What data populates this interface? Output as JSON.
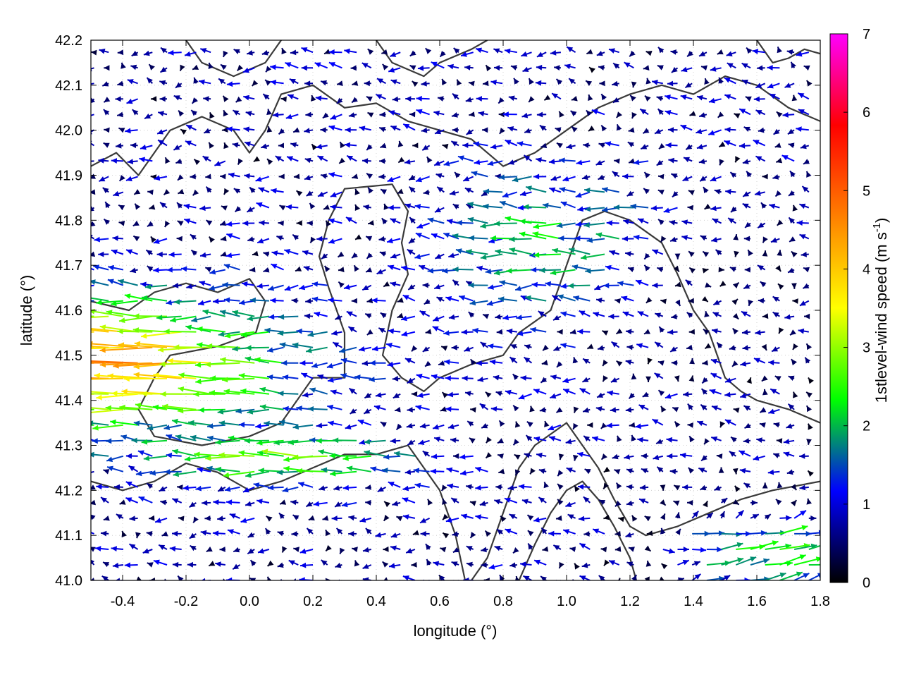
{
  "chart_data": {
    "type": "vector-field",
    "title": "",
    "xlabel": "longitude (°)",
    "ylabel": "latitude (°)",
    "xlim": [
      -0.5,
      1.8
    ],
    "ylim": [
      41.0,
      42.2
    ],
    "x_ticks": [
      "-0.4",
      "-0.2",
      "0.0",
      "0.2",
      "0.4",
      "0.6",
      "0.8",
      "1.0",
      "1.2",
      "1.4",
      "1.6",
      "1.8"
    ],
    "x_tick_values": [
      -0.4,
      -0.2,
      0.0,
      0.2,
      0.4,
      0.6,
      0.8,
      1.0,
      1.2,
      1.4,
      1.6,
      1.8
    ],
    "y_ticks": [
      "41.0",
      "41.1",
      "41.2",
      "41.3",
      "41.4",
      "41.5",
      "41.6",
      "41.7",
      "41.8",
      "41.9",
      "42.0",
      "42.1",
      "42.2"
    ],
    "y_tick_values": [
      41.0,
      41.1,
      41.2,
      41.3,
      41.4,
      41.5,
      41.6,
      41.7,
      41.8,
      41.9,
      42.0,
      42.1,
      42.2
    ],
    "grid": true,
    "colorbar": {
      "label": "1stlevel-wind speed (m s-1)",
      "label_base": "1stlevel-wind speed (m s",
      "label_sup": "-1",
      "label_end": ")",
      "range": [
        0,
        7
      ],
      "ticks": [
        "0",
        "1",
        "2",
        "3",
        "4",
        "5",
        "6",
        "7"
      ],
      "tick_values": [
        0,
        1,
        2,
        3,
        4,
        5,
        6,
        7
      ],
      "colors": [
        "#000000",
        "#0000ff",
        "#00ff00",
        "#ffff00",
        "#ff8000",
        "#ff0000",
        "#ff00ff"
      ]
    },
    "vector_summary": "wind vectors colored by speed; strongest westward flow (3–5 m s-1) over x -0.5 to 0.3, lat 41.3–41.6; moderate eastward flow (2–3 m s-1) in the southeast corner",
    "contours": [
      [
        [
          -0.5,
          41.62
        ],
        [
          -0.38,
          41.6
        ],
        [
          -0.3,
          41.64
        ],
        [
          -0.2,
          41.66
        ],
        [
          -0.1,
          41.64
        ],
        [
          0.0,
          41.67
        ],
        [
          0.05,
          41.62
        ],
        [
          0.02,
          41.55
        ],
        [
          -0.1,
          41.52
        ],
        [
          -0.25,
          41.5
        ],
        [
          -0.3,
          41.45
        ],
        [
          -0.35,
          41.38
        ],
        [
          -0.3,
          41.32
        ],
        [
          -0.15,
          41.3
        ],
        [
          0.0,
          41.32
        ],
        [
          0.1,
          41.35
        ],
        [
          0.15,
          41.4
        ]
      ],
      [
        [
          0.15,
          41.4
        ],
        [
          0.2,
          41.45
        ],
        [
          0.3,
          41.45
        ],
        [
          0.3,
          41.55
        ],
        [
          0.25,
          41.65
        ],
        [
          0.22,
          41.72
        ],
        [
          0.25,
          41.8
        ],
        [
          0.3,
          41.87
        ],
        [
          0.45,
          41.88
        ],
        [
          0.5,
          41.82
        ],
        [
          0.48,
          41.75
        ],
        [
          0.5,
          41.68
        ],
        [
          0.45,
          41.6
        ],
        [
          0.42,
          41.5
        ],
        [
          0.48,
          41.45
        ],
        [
          0.55,
          41.42
        ],
        [
          0.6,
          41.45
        ]
      ],
      [
        [
          0.6,
          41.45
        ],
        [
          0.7,
          41.48
        ],
        [
          0.8,
          41.5
        ],
        [
          0.85,
          41.55
        ],
        [
          0.95,
          41.6
        ],
        [
          1.0,
          41.7
        ],
        [
          1.05,
          41.8
        ],
        [
          1.12,
          41.82
        ],
        [
          1.2,
          41.8
        ],
        [
          1.3,
          41.75
        ],
        [
          1.35,
          41.68
        ],
        [
          1.4,
          41.6
        ],
        [
          1.45,
          41.55
        ],
        [
          1.5,
          41.45
        ],
        [
          1.55,
          41.42
        ],
        [
          1.6,
          41.4
        ],
        [
          1.7,
          41.38
        ],
        [
          1.8,
          41.35
        ]
      ],
      [
        [
          -0.5,
          41.22
        ],
        [
          -0.4,
          41.2
        ],
        [
          -0.3,
          41.22
        ],
        [
          -0.2,
          41.26
        ],
        [
          -0.1,
          41.24
        ],
        [
          0.0,
          41.2
        ],
        [
          0.1,
          41.22
        ],
        [
          0.2,
          41.25
        ],
        [
          0.3,
          41.28
        ],
        [
          0.4,
          41.28
        ],
        [
          0.5,
          41.3
        ],
        [
          0.55,
          41.25
        ],
        [
          0.6,
          41.2
        ],
        [
          0.65,
          41.1
        ],
        [
          0.68,
          41.0
        ]
      ],
      [
        [
          0.7,
          41.0
        ],
        [
          0.75,
          41.05
        ],
        [
          0.8,
          41.15
        ],
        [
          0.85,
          41.25
        ],
        [
          0.9,
          41.3
        ],
        [
          1.0,
          41.35
        ],
        [
          1.05,
          41.3
        ],
        [
          1.1,
          41.25
        ],
        [
          1.15,
          41.18
        ],
        [
          1.2,
          41.12
        ],
        [
          1.25,
          41.1
        ],
        [
          1.35,
          41.12
        ],
        [
          1.45,
          41.15
        ],
        [
          1.55,
          41.18
        ],
        [
          1.65,
          41.2
        ],
        [
          1.8,
          41.22
        ]
      ],
      [
        [
          0.85,
          41.0
        ],
        [
          0.9,
          41.08
        ],
        [
          0.95,
          41.15
        ],
        [
          1.0,
          41.2
        ],
        [
          1.05,
          41.22
        ],
        [
          1.1,
          41.18
        ],
        [
          1.15,
          41.12
        ],
        [
          1.2,
          41.05
        ],
        [
          1.22,
          41.0
        ]
      ],
      [
        [
          -0.5,
          41.92
        ],
        [
          -0.42,
          41.95
        ],
        [
          -0.35,
          41.9
        ],
        [
          -0.3,
          41.95
        ],
        [
          -0.25,
          42.0
        ],
        [
          -0.15,
          42.03
        ],
        [
          -0.05,
          42.0
        ],
        [
          0.0,
          41.95
        ],
        [
          0.05,
          42.0
        ],
        [
          0.1,
          42.08
        ],
        [
          0.2,
          42.1
        ],
        [
          0.3,
          42.05
        ],
        [
          0.4,
          42.06
        ],
        [
          0.5,
          42.02
        ],
        [
          0.6,
          42.0
        ],
        [
          0.7,
          41.98
        ],
        [
          0.8,
          41.92
        ],
        [
          0.9,
          41.95
        ],
        [
          1.0,
          42.0
        ],
        [
          1.1,
          42.05
        ],
        [
          1.2,
          42.08
        ],
        [
          1.3,
          42.1
        ],
        [
          1.4,
          42.08
        ],
        [
          1.5,
          42.12
        ],
        [
          1.6,
          42.1
        ],
        [
          1.7,
          42.05
        ],
        [
          1.8,
          42.02
        ]
      ],
      [
        [
          0.4,
          42.2
        ],
        [
          0.45,
          42.15
        ],
        [
          0.55,
          42.12
        ],
        [
          0.6,
          42.15
        ],
        [
          0.7,
          42.18
        ],
        [
          0.75,
          42.2
        ]
      ],
      [
        [
          1.6,
          42.2
        ],
        [
          1.65,
          42.15
        ],
        [
          1.7,
          42.16
        ],
        [
          1.75,
          42.18
        ],
        [
          1.8,
          42.17
        ]
      ],
      [
        [
          -0.2,
          42.2
        ],
        [
          -0.15,
          42.15
        ],
        [
          -0.05,
          42.12
        ],
        [
          0.05,
          42.15
        ],
        [
          0.1,
          42.2
        ]
      ]
    ]
  }
}
